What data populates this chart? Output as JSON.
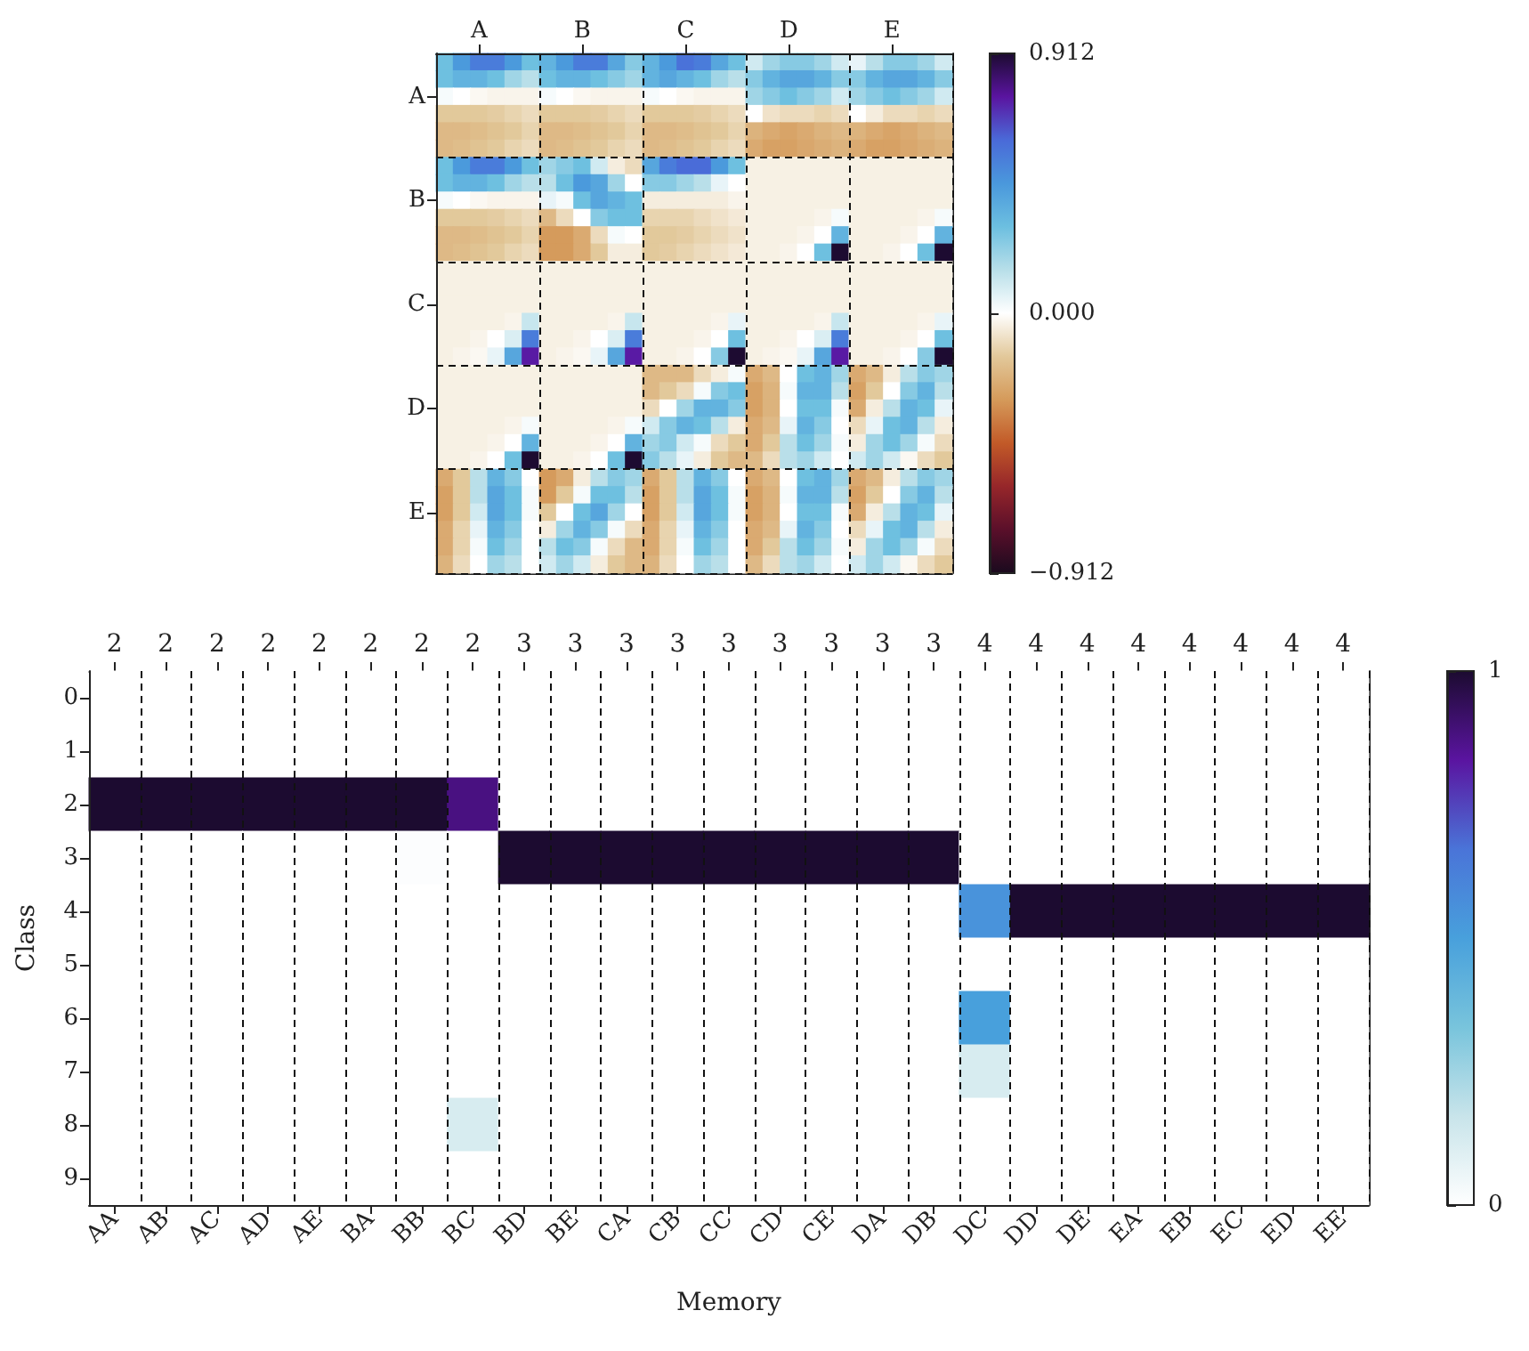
{
  "chart_data": [
    {
      "type": "heatmap",
      "categories": [
        null,
        null,
        "A",
        null,
        null,
        null,
        null,
        null,
        "B",
        null,
        null,
        null,
        null,
        null,
        "C",
        null,
        null,
        null,
        null,
        null,
        "D",
        null,
        null,
        null,
        null,
        null,
        "E",
        null,
        null,
        null
      ],
      "y_categories": [
        null,
        null,
        "A",
        null,
        null,
        null,
        null,
        null,
        "B",
        null,
        null,
        null,
        null,
        null,
        "C",
        null,
        null,
        null,
        null,
        null,
        "D",
        null,
        null,
        null,
        null,
        null,
        "E",
        null,
        null,
        null
      ],
      "cells": [
        [
          0.3,
          0.45,
          0.55,
          0.55,
          0.45,
          0.3,
          0.35,
          0.45,
          0.55,
          0.55,
          0.4,
          0.25,
          0.35,
          0.45,
          0.58,
          0.55,
          0.4,
          0.3,
          0.1,
          0.2,
          0.25,
          0.25,
          0.2,
          0.1,
          0.05,
          0.15,
          0.25,
          0.25,
          0.2,
          0.1
        ],
        [
          0.3,
          0.35,
          0.35,
          0.3,
          0.2,
          0.15,
          0.3,
          0.35,
          0.35,
          0.3,
          0.25,
          0.2,
          0.35,
          0.4,
          0.35,
          0.3,
          0.2,
          0.15,
          0.25,
          0.35,
          0.4,
          0.4,
          0.35,
          0.25,
          0.25,
          0.35,
          0.4,
          0.4,
          0.35,
          0.25
        ],
        [
          0.02,
          0,
          -0.02,
          -0.03,
          -0.03,
          -0.03,
          0.02,
          0,
          -0.02,
          -0.03,
          -0.03,
          -0.03,
          0.02,
          0,
          -0.02,
          -0.03,
          -0.03,
          -0.03,
          0.2,
          0.25,
          0.3,
          0.25,
          0.2,
          0.1,
          0.2,
          0.25,
          0.3,
          0.25,
          0.2,
          0.1
        ],
        [
          -0.15,
          -0.15,
          -0.15,
          -0.14,
          -0.12,
          -0.1,
          -0.15,
          -0.15,
          -0.15,
          -0.14,
          -0.12,
          -0.1,
          -0.15,
          -0.15,
          -0.15,
          -0.14,
          -0.12,
          -0.1,
          0,
          -0.08,
          -0.1,
          -0.1,
          -0.12,
          -0.1,
          0,
          -0.05,
          -0.1,
          -0.1,
          -0.12,
          -0.1
        ],
        [
          -0.2,
          -0.2,
          -0.19,
          -0.17,
          -0.15,
          -0.12,
          -0.2,
          -0.2,
          -0.19,
          -0.17,
          -0.15,
          -0.12,
          -0.2,
          -0.2,
          -0.19,
          -0.17,
          -0.15,
          -0.12,
          -0.22,
          -0.25,
          -0.27,
          -0.25,
          -0.22,
          -0.2,
          -0.22,
          -0.25,
          -0.27,
          -0.25,
          -0.22,
          -0.2
        ],
        [
          -0.2,
          -0.19,
          -0.17,
          -0.15,
          -0.12,
          -0.1,
          -0.2,
          -0.19,
          -0.17,
          -0.15,
          -0.12,
          -0.1,
          -0.2,
          -0.19,
          -0.17,
          -0.15,
          -0.12,
          -0.1,
          -0.25,
          -0.28,
          -0.28,
          -0.26,
          -0.24,
          -0.22,
          -0.25,
          -0.28,
          -0.28,
          -0.26,
          -0.24,
          -0.22
        ],
        [
          0.3,
          0.45,
          0.55,
          0.55,
          0.45,
          0.3,
          0.2,
          0.25,
          0.3,
          0.1,
          -0.05,
          -0.1,
          0.4,
          0.55,
          0.6,
          0.6,
          0.45,
          0.3,
          -0.04,
          -0.04,
          -0.04,
          -0.04,
          -0.04,
          -0.04,
          -0.04,
          -0.04,
          -0.04,
          -0.04,
          -0.04,
          -0.04
        ],
        [
          0.3,
          0.35,
          0.35,
          0.3,
          0.2,
          0.15,
          0.15,
          0.3,
          0.45,
          0.4,
          0.2,
          0,
          0.25,
          0.25,
          0.2,
          0.15,
          0.05,
          0,
          -0.04,
          -0.04,
          -0.04,
          -0.04,
          -0.04,
          -0.04,
          -0.04,
          -0.04,
          -0.04,
          -0.04,
          -0.04,
          -0.04
        ],
        [
          0.02,
          0,
          -0.02,
          -0.03,
          -0.03,
          -0.03,
          0.05,
          0.02,
          0.3,
          0.4,
          0.35,
          0.3,
          -0.05,
          -0.05,
          -0.05,
          -0.05,
          -0.05,
          -0.03,
          -0.04,
          -0.04,
          -0.04,
          -0.04,
          -0.04,
          -0.04,
          -0.04,
          -0.04,
          -0.04,
          -0.04,
          -0.04,
          -0.04
        ],
        [
          -0.15,
          -0.15,
          -0.15,
          -0.14,
          -0.12,
          -0.1,
          -0.2,
          -0.1,
          0,
          0.25,
          0.3,
          0.3,
          -0.12,
          -0.12,
          -0.12,
          -0.1,
          -0.08,
          -0.06,
          -0.04,
          -0.04,
          -0.04,
          -0.04,
          -0.03,
          0.02,
          -0.04,
          -0.04,
          -0.04,
          -0.04,
          -0.03,
          0.02
        ],
        [
          -0.2,
          -0.2,
          -0.19,
          -0.17,
          -0.15,
          -0.12,
          -0.3,
          -0.3,
          -0.25,
          -0.1,
          0.02,
          0,
          -0.15,
          -0.15,
          -0.14,
          -0.12,
          -0.1,
          -0.08,
          -0.04,
          -0.04,
          -0.04,
          -0.03,
          0,
          0.35,
          -0.04,
          -0.04,
          -0.04,
          -0.03,
          0,
          0.35
        ],
        [
          -0.2,
          -0.19,
          -0.17,
          -0.15,
          -0.12,
          -0.1,
          -0.3,
          -0.3,
          -0.25,
          -0.15,
          -0.05,
          -0.05,
          -0.15,
          -0.14,
          -0.12,
          -0.1,
          -0.08,
          -0.06,
          -0.04,
          -0.04,
          -0.03,
          0,
          0.3,
          0.91,
          -0.04,
          -0.04,
          -0.03,
          0,
          0.3,
          0.91
        ],
        [
          -0.04,
          -0.04,
          -0.04,
          -0.04,
          -0.04,
          -0.04,
          -0.04,
          -0.04,
          -0.04,
          -0.04,
          -0.04,
          -0.04,
          -0.04,
          -0.04,
          -0.04,
          -0.04,
          -0.04,
          -0.04,
          -0.04,
          -0.04,
          -0.04,
          -0.04,
          -0.04,
          -0.04,
          -0.04,
          -0.04,
          -0.04,
          -0.04,
          -0.04,
          -0.04
        ],
        [
          -0.04,
          -0.04,
          -0.04,
          -0.04,
          -0.04,
          -0.04,
          -0.04,
          -0.04,
          -0.04,
          -0.04,
          -0.04,
          -0.04,
          -0.04,
          -0.04,
          -0.04,
          -0.04,
          -0.04,
          -0.04,
          -0.04,
          -0.04,
          -0.04,
          -0.04,
          -0.04,
          -0.04,
          -0.04,
          -0.04,
          -0.04,
          -0.04,
          -0.04,
          -0.04
        ],
        [
          -0.04,
          -0.04,
          -0.04,
          -0.04,
          -0.04,
          -0.04,
          -0.04,
          -0.04,
          -0.04,
          -0.04,
          -0.04,
          -0.04,
          -0.04,
          -0.04,
          -0.04,
          -0.04,
          -0.04,
          -0.04,
          -0.04,
          -0.04,
          -0.04,
          -0.04,
          -0.04,
          -0.04,
          -0.04,
          -0.04,
          -0.04,
          -0.04,
          -0.04,
          -0.04
        ],
        [
          -0.04,
          -0.04,
          -0.04,
          -0.04,
          -0.03,
          0.12,
          -0.04,
          -0.04,
          -0.04,
          -0.04,
          -0.03,
          0.12,
          -0.04,
          -0.04,
          -0.04,
          -0.04,
          -0.03,
          0.05,
          -0.04,
          -0.04,
          -0.04,
          -0.04,
          -0.03,
          0.12,
          -0.04,
          -0.04,
          -0.04,
          -0.04,
          -0.03,
          0.05
        ],
        [
          -0.04,
          -0.04,
          -0.03,
          0,
          0.08,
          0.55,
          -0.04,
          -0.04,
          -0.03,
          0,
          0.08,
          0.55,
          -0.04,
          -0.04,
          -0.04,
          -0.03,
          0,
          0.3,
          -0.04,
          -0.04,
          -0.03,
          0,
          0.08,
          0.55,
          -0.04,
          -0.04,
          -0.04,
          -0.03,
          0,
          0.3
        ],
        [
          -0.04,
          -0.03,
          -0.02,
          0.05,
          0.4,
          0.75,
          -0.04,
          -0.03,
          -0.02,
          0.05,
          0.4,
          0.75,
          -0.04,
          -0.04,
          -0.03,
          0,
          0.25,
          0.91,
          -0.04,
          -0.03,
          -0.02,
          0.05,
          0.4,
          0.75,
          -0.04,
          -0.04,
          -0.03,
          0,
          0.25,
          0.91
        ],
        [
          -0.04,
          -0.04,
          -0.04,
          -0.04,
          -0.04,
          -0.04,
          -0.04,
          -0.04,
          -0.04,
          -0.04,
          -0.04,
          -0.04,
          -0.2,
          -0.2,
          -0.2,
          -0.1,
          -0.05,
          0.02,
          -0.25,
          -0.2,
          0,
          0.3,
          0.35,
          0.2,
          -0.25,
          -0.2,
          -0.05,
          0.15,
          0.25,
          0.2
        ],
        [
          -0.04,
          -0.04,
          -0.04,
          -0.04,
          -0.04,
          -0.04,
          -0.04,
          -0.04,
          -0.04,
          -0.04,
          -0.04,
          -0.04,
          -0.2,
          -0.15,
          -0.1,
          0.02,
          0.25,
          0.3,
          -0.28,
          -0.22,
          0.02,
          0.35,
          0.35,
          0.15,
          -0.28,
          -0.15,
          0,
          0.25,
          0.35,
          0.15
        ],
        [
          -0.04,
          -0.04,
          -0.04,
          -0.04,
          -0.04,
          -0.04,
          -0.04,
          -0.04,
          -0.04,
          -0.04,
          -0.04,
          -0.04,
          -0.1,
          0,
          0.2,
          0.35,
          0.35,
          0.25,
          -0.28,
          -0.22,
          0,
          0.3,
          0.3,
          0.02,
          -0.25,
          -0.05,
          0.15,
          0.35,
          0.3,
          0.05
        ],
        [
          -0.04,
          -0.04,
          -0.04,
          -0.04,
          -0.03,
          0.02,
          -0.04,
          -0.04,
          -0.04,
          -0.04,
          -0.03,
          0.02,
          0.1,
          0.25,
          0.35,
          0.3,
          0.15,
          -0.05,
          -0.25,
          -0.2,
          0.05,
          0.35,
          0.25,
          0,
          -0.1,
          0.05,
          0.3,
          0.35,
          0.15,
          -0.05
        ],
        [
          -0.04,
          -0.04,
          -0.04,
          -0.03,
          0,
          0.35,
          -0.04,
          -0.04,
          -0.04,
          -0.03,
          0,
          0.35,
          0.2,
          0.25,
          0.1,
          0.02,
          -0.1,
          -0.15,
          -0.25,
          -0.15,
          0.15,
          0.3,
          0.2,
          0.02,
          -0.05,
          0.2,
          0.3,
          0.2,
          0.02,
          -0.1
        ],
        [
          -0.04,
          -0.04,
          -0.03,
          0,
          0.3,
          0.91,
          -0.04,
          -0.04,
          -0.03,
          0,
          0.3,
          0.91,
          0.25,
          0.15,
          0.05,
          -0.05,
          -0.15,
          -0.2,
          -0.2,
          -0.1,
          0.15,
          0.2,
          0.1,
          0,
          0.1,
          0.2,
          0.1,
          -0.02,
          -0.1,
          -0.15
        ],
        [
          -0.25,
          -0.15,
          0.15,
          0.35,
          0.25,
          0,
          -0.3,
          -0.25,
          -0.05,
          0.15,
          0.25,
          0.2,
          -0.25,
          -0.15,
          0.15,
          0.35,
          0.25,
          0,
          -0.25,
          -0.2,
          0,
          0.3,
          0.35,
          0.2,
          -0.25,
          -0.2,
          -0.05,
          0.15,
          0.25,
          0.2
        ],
        [
          -0.28,
          -0.15,
          0.15,
          0.4,
          0.3,
          0.02,
          -0.3,
          -0.15,
          0.02,
          0.3,
          0.3,
          0.15,
          -0.28,
          -0.15,
          0.15,
          0.4,
          0.3,
          0.02,
          -0.28,
          -0.22,
          0.02,
          0.35,
          0.35,
          0.15,
          -0.28,
          -0.15,
          0,
          0.25,
          0.35,
          0.15
        ],
        [
          -0.28,
          -0.15,
          0.1,
          0.4,
          0.3,
          0.02,
          -0.15,
          0,
          0.3,
          0.4,
          0.2,
          0,
          -0.28,
          -0.15,
          0.1,
          0.4,
          0.3,
          0.02,
          -0.28,
          -0.22,
          0,
          0.3,
          0.3,
          0.02,
          -0.25,
          -0.05,
          0.15,
          0.35,
          0.3,
          0.05
        ],
        [
          -0.25,
          -0.12,
          0.05,
          0.35,
          0.25,
          0,
          -0.05,
          0.2,
          0.35,
          0.25,
          0.02,
          -0.1,
          -0.25,
          -0.12,
          0.05,
          0.35,
          0.25,
          0,
          -0.25,
          -0.2,
          0.05,
          0.35,
          0.25,
          0,
          -0.1,
          0.05,
          0.3,
          0.35,
          0.15,
          -0.05
        ],
        [
          -0.25,
          -0.12,
          0.02,
          0.3,
          0.2,
          0,
          0.15,
          0.3,
          0.25,
          0.02,
          -0.1,
          -0.2,
          -0.25,
          -0.12,
          0.02,
          0.3,
          0.2,
          0,
          -0.25,
          -0.15,
          0.15,
          0.3,
          0.2,
          0.02,
          -0.05,
          0.2,
          0.3,
          0.2,
          0.02,
          -0.1
        ],
        [
          -0.22,
          -0.1,
          0,
          0.2,
          0.15,
          0,
          0.1,
          0.2,
          0.1,
          -0.05,
          -0.15,
          -0.2,
          -0.22,
          -0.1,
          0,
          0.2,
          0.15,
          0,
          -0.2,
          -0.1,
          0.15,
          0.2,
          0.1,
          0,
          0.1,
          0.2,
          0.1,
          -0.02,
          -0.1,
          -0.15
        ]
      ],
      "clim": [
        -0.912,
        0.912
      ],
      "cticks": [
        {
          "value": -0.912,
          "label": "−0.912"
        },
        {
          "value": 0,
          "label": "0.000"
        },
        0.912
      ],
      "grid": true
    },
    {
      "type": "heatmap",
      "xlabel": "Memory",
      "ylabel": "Class",
      "categories": [
        "AA",
        "AB",
        "AC",
        "AD",
        "AE",
        "BA",
        "BB",
        "BC",
        "BD",
        "BE",
        "CA",
        "CB",
        "CC",
        "CD",
        "CE",
        "DA",
        "DB",
        "DC",
        "DD",
        "DE",
        "EA",
        "EB",
        "EC",
        "ED",
        "EE"
      ],
      "annotations": [
        "2",
        "2",
        "2",
        "2",
        "2",
        "2",
        "2",
        "2",
        "3",
        "3",
        "3",
        "3",
        "3",
        "3",
        "3",
        "3",
        "3",
        "4",
        "4",
        "4",
        "4",
        "4",
        "4",
        "4",
        "4"
      ],
      "y_categories": [
        "0",
        "1",
        "2",
        "3",
        "4",
        "5",
        "6",
        "7",
        "8",
        "9"
      ],
      "cells": [
        [
          0,
          0,
          0,
          0,
          0,
          0,
          0,
          0,
          0,
          0,
          0,
          0,
          0,
          0,
          0,
          0,
          0,
          0,
          0,
          0,
          0,
          0,
          0,
          0,
          0
        ],
        [
          0,
          0,
          0,
          0,
          0,
          0,
          0,
          0,
          0,
          0,
          0,
          0,
          0,
          0,
          0,
          0,
          0,
          0,
          0,
          0,
          0,
          0,
          0,
          0,
          0
        ],
        [
          1,
          1,
          1,
          1,
          1,
          1,
          1,
          0.88,
          0,
          0,
          0,
          0,
          0,
          0,
          0,
          0,
          0,
          0,
          0,
          0,
          0,
          0,
          0,
          0,
          0
        ],
        [
          0,
          0,
          0,
          0,
          0,
          0,
          0.01,
          0,
          1,
          1,
          1,
          1,
          1,
          1,
          1,
          1,
          1,
          0,
          0,
          0,
          0,
          0,
          0,
          0,
          0
        ],
        [
          0,
          0,
          0,
          0,
          0,
          0,
          0,
          0,
          0,
          0,
          0,
          0,
          0,
          0,
          0,
          0,
          0,
          0.55,
          1,
          1,
          1,
          1,
          1,
          1,
          1
        ],
        [
          0,
          0,
          0,
          0,
          0,
          0,
          0,
          0,
          0,
          0,
          0,
          0,
          0,
          0,
          0,
          0,
          0,
          0,
          0,
          0,
          0,
          0,
          0,
          0,
          0
        ],
        [
          0,
          0,
          0,
          0,
          0,
          0,
          0,
          0,
          0,
          0,
          0,
          0,
          0,
          0,
          0,
          0,
          0,
          0.5,
          0,
          0,
          0,
          0,
          0,
          0,
          0
        ],
        [
          0,
          0,
          0,
          0,
          0,
          0,
          0,
          0,
          0,
          0,
          0,
          0,
          0,
          0,
          0,
          0,
          0,
          0.12,
          0,
          0,
          0,
          0,
          0,
          0,
          0
        ],
        [
          0,
          0,
          0,
          0,
          0,
          0,
          0,
          0.12,
          0,
          0,
          0,
          0,
          0,
          0,
          0,
          0,
          0,
          0,
          0,
          0,
          0,
          0,
          0,
          0,
          0
        ],
        [
          0,
          0,
          0,
          0,
          0,
          0,
          0,
          0,
          0,
          0,
          0,
          0,
          0,
          0,
          0,
          0,
          0,
          0,
          0,
          0,
          0,
          0,
          0,
          0,
          0
        ]
      ],
      "clim": [
        0,
        1
      ],
      "cticks": [
        0,
        1
      ],
      "grid": "x"
    }
  ]
}
